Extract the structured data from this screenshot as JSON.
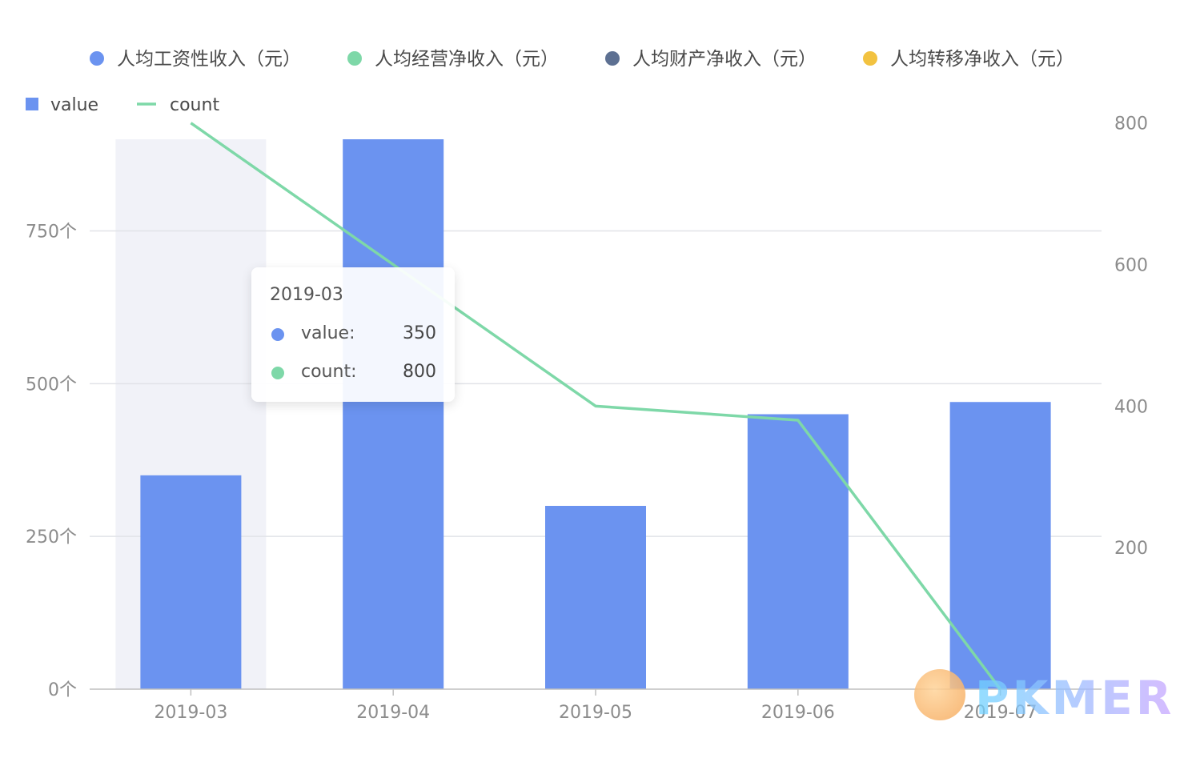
{
  "legend_top": [
    {
      "label": "人均工资性收入（元）",
      "color": "#6b93f0"
    },
    {
      "label": "人均经营净收入（元）",
      "color": "#7ed8a8"
    },
    {
      "label": "人均财产净收入（元）",
      "color": "#5d7092"
    },
    {
      "label": "人均转移净收入（元）",
      "color": "#f2c240"
    }
  ],
  "legend_series": [
    {
      "label": "value",
      "color": "#6b93f0",
      "shape": "square"
    },
    {
      "label": "count",
      "color": "#7ed8a8",
      "shape": "line"
    }
  ],
  "tooltip": {
    "title": "2019-03",
    "rows": [
      {
        "name": "value:",
        "value": "350",
        "color": "#6b93f0"
      },
      {
        "name": "count:",
        "value": "800",
        "color": "#7ed8a8"
      }
    ]
  },
  "watermark": {
    "text": "PKMER"
  },
  "chart_data": {
    "type": "bar",
    "categories": [
      "2019-03",
      "2019-04",
      "2019-05",
      "2019-06",
      "2019-07"
    ],
    "series": [
      {
        "name": "value",
        "type": "bar",
        "axis": "left",
        "color": "#6b93f0",
        "values": [
          350,
          900,
          300,
          450,
          470
        ]
      },
      {
        "name": "count",
        "type": "line",
        "axis": "right",
        "color": "#7ed8a8",
        "values": [
          800,
          600,
          400,
          380,
          0
        ]
      }
    ],
    "y_left": {
      "ticks": [
        "0个",
        "250个",
        "500个",
        "750个"
      ],
      "tick_values": [
        0,
        250,
        500,
        750
      ],
      "range": [
        0,
        900
      ]
    },
    "y_right": {
      "ticks": [
        "200",
        "400",
        "600",
        "800"
      ],
      "tick_values": [
        200,
        400,
        600,
        800
      ],
      "range": [
        0,
        777
      ]
    },
    "highlighted_category": "2019-03",
    "grid": true,
    "legend_position": "top"
  }
}
